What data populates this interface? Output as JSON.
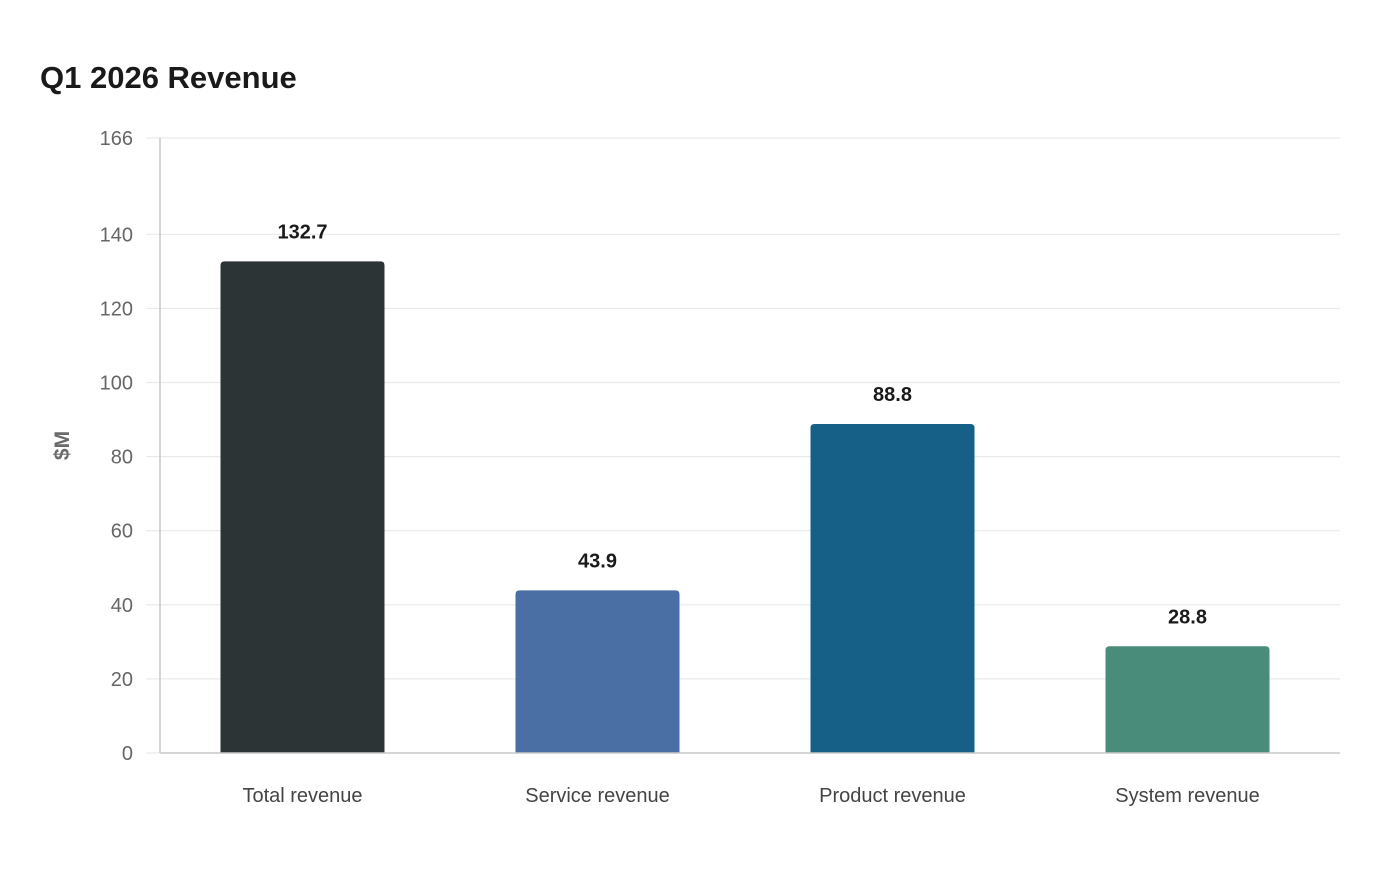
{
  "chart_data": {
    "type": "bar",
    "title": "Q1 2026 Revenue",
    "xlabel": "",
    "ylabel": "$M",
    "categories": [
      "Total revenue",
      "Service revenue",
      "Product revenue",
      "System revenue"
    ],
    "values": [
      132.7,
      43.9,
      88.8,
      28.8
    ],
    "value_labels": [
      "132.7",
      "43.9",
      "88.8",
      "28.8"
    ],
    "colors": [
      "#2d3436",
      "#4a6fa5",
      "#166088",
      "#4a8c7a"
    ],
    "ylim": [
      0,
      166
    ],
    "yticks": [
      0,
      20,
      40,
      60,
      80,
      100,
      120,
      140,
      166
    ],
    "ytick_labels": [
      "0",
      "20",
      "40",
      "60",
      "80",
      "100",
      "120",
      "140",
      "166"
    ],
    "grid": true,
    "legend": "none"
  }
}
